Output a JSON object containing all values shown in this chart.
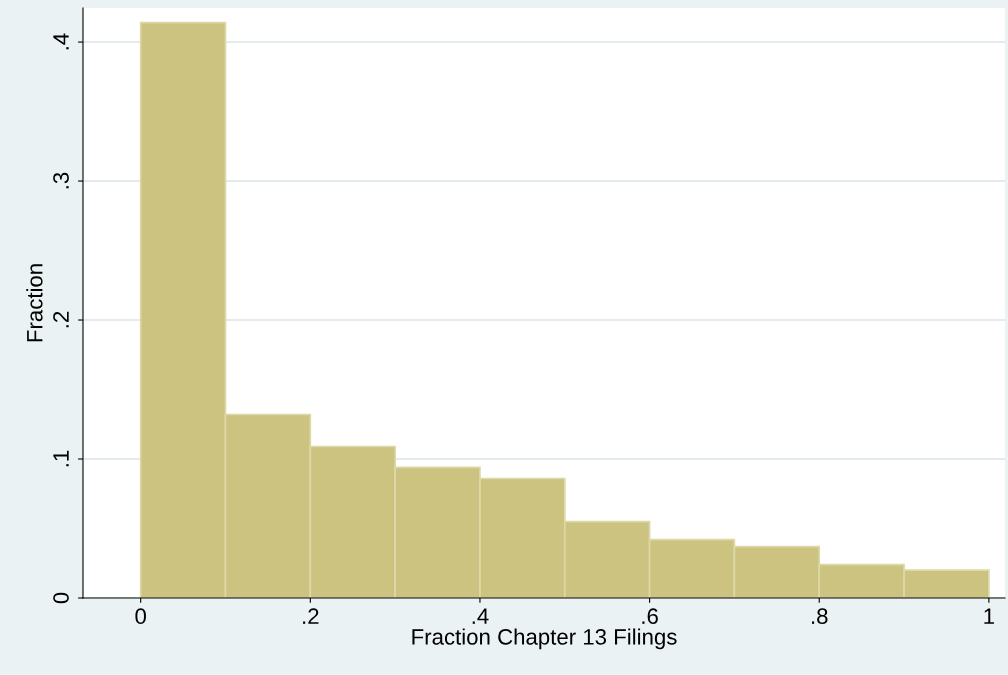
{
  "chart_data": {
    "type": "histogram",
    "xlabel": "Fraction Chapter 13 Filings",
    "ylabel": "Fraction",
    "bins": [
      0,
      0.1,
      0.2,
      0.3,
      0.4,
      0.5,
      0.6,
      0.7,
      0.8,
      0.9,
      1.0
    ],
    "values": [
      0.414,
      0.132,
      0.109,
      0.094,
      0.086,
      0.055,
      0.042,
      0.037,
      0.024,
      0.02
    ],
    "color": "#cbc37f",
    "xlim": [
      -0.068,
      1.019
    ],
    "ylim": [
      0,
      0.4245
    ],
    "xticks": [
      0,
      {
        "value": 0.2,
        "label": ".2"
      },
      {
        "value": 0.4,
        "label": ".4"
      },
      {
        "value": 0.6,
        "label": ".6"
      },
      {
        "value": 0.8,
        "label": ".8"
      },
      1
    ],
    "yticks": [
      0,
      {
        "value": 0.1,
        "label": ".1"
      },
      {
        "value": 0.2,
        "label": ".2"
      },
      {
        "value": 0.3,
        "label": ".3"
      },
      {
        "value": 0.4,
        "label": ".4"
      }
    ],
    "grid": "y"
  }
}
